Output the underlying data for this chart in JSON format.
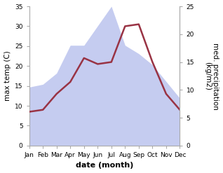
{
  "months": [
    1,
    2,
    3,
    4,
    5,
    6,
    7,
    8,
    9,
    10,
    11,
    12
  ],
  "month_labels": [
    "Jan",
    "Feb",
    "Mar",
    "Apr",
    "May",
    "Jun",
    "Jul",
    "Aug",
    "Sep",
    "Oct",
    "Nov",
    "Dec"
  ],
  "temp": [
    8.5,
    9.0,
    13.0,
    16.0,
    22.0,
    20.5,
    21.0,
    30.0,
    30.5,
    21.0,
    13.0,
    9.0
  ],
  "precip": [
    10.5,
    11.0,
    13.0,
    18.0,
    18.0,
    21.5,
    25.0,
    18.0,
    16.5,
    14.5,
    11.5,
    8.5
  ],
  "temp_color": "#993344",
  "precip_fill_color": "#c5ccf0",
  "temp_ylim": [
    0,
    35
  ],
  "precip_ylim": [
    0,
    25
  ],
  "temp_yticks": [
    0,
    5,
    10,
    15,
    20,
    25,
    30,
    35
  ],
  "precip_yticks": [
    0,
    5,
    10,
    15,
    20,
    25
  ],
  "ylabel_left": "max temp (C)",
  "ylabel_right": "med. precipitation\n(kg/m2)",
  "xlabel": "date (month)",
  "background_color": "#ffffff",
  "spine_color": "#aaaaaa",
  "tick_labelsize": 6.5,
  "ylabel_fontsize": 7.5,
  "xlabel_fontsize": 8
}
